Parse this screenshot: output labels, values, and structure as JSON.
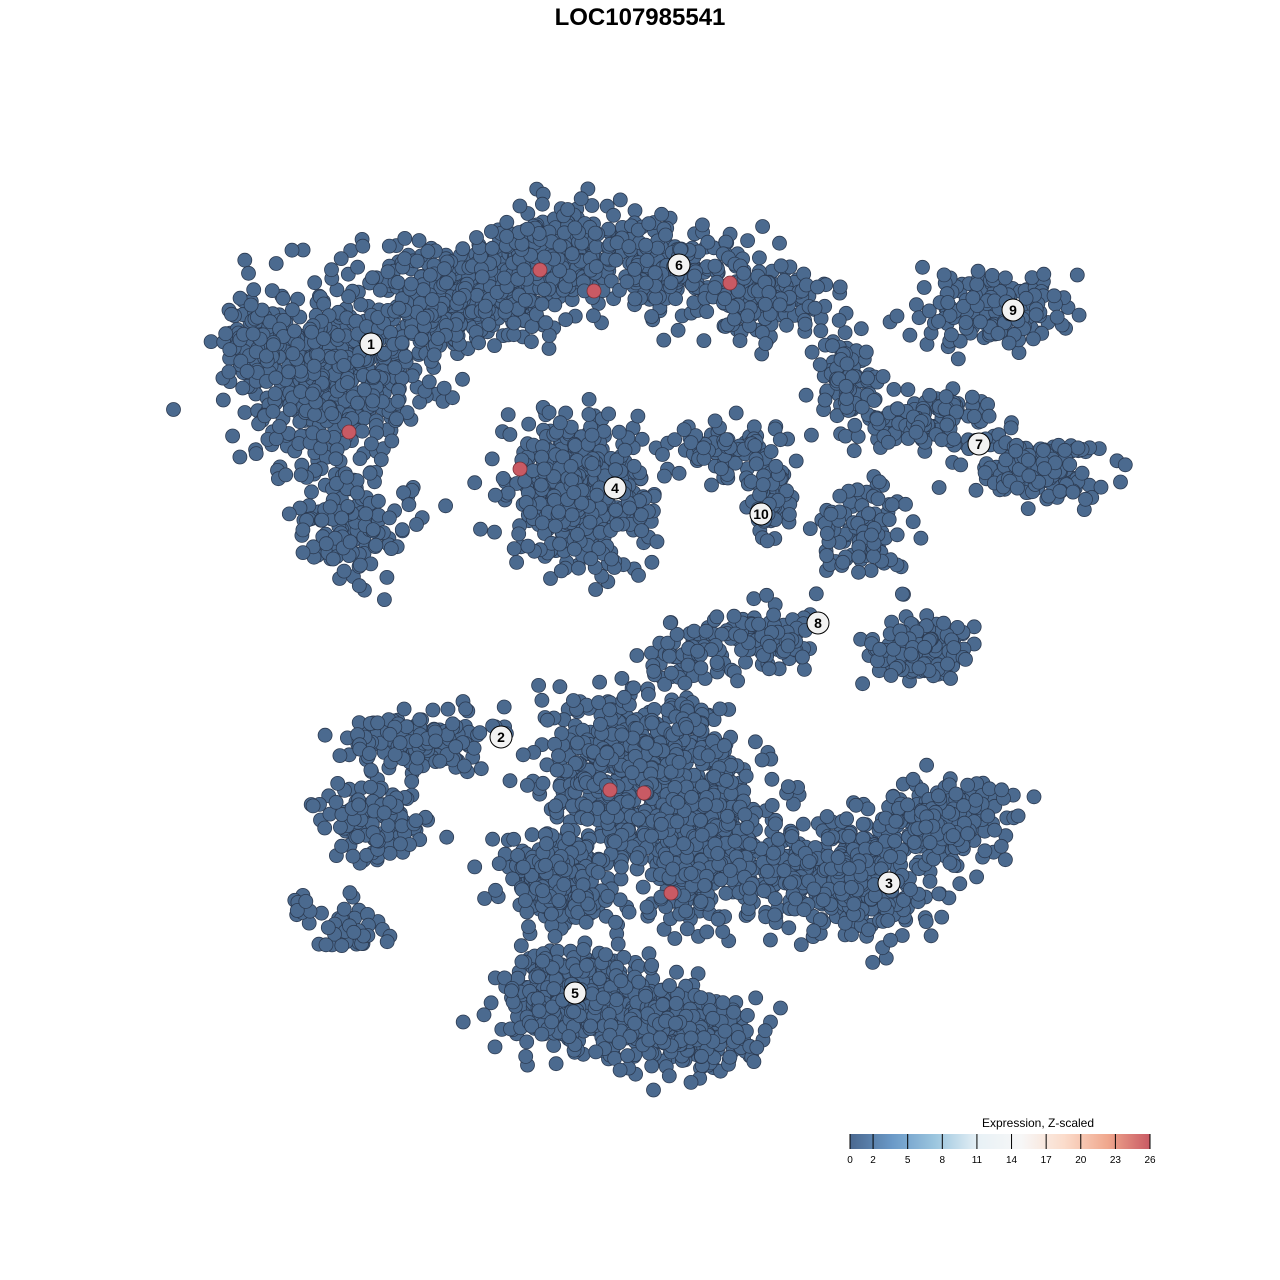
{
  "chart_data": {
    "type": "scatter",
    "title": "LOC107985541",
    "xlabel": "",
    "ylabel": "",
    "axes_visible": false,
    "grid": false,
    "base_point_color": "#4b6a8f",
    "highlight_point_color": "#c95a64",
    "cluster_labels": [
      {
        "label": "1",
        "x": -26.9,
        "y": 29.6
      },
      {
        "label": "2",
        "x": -13.9,
        "y": -9.7
      },
      {
        "label": "3",
        "x": 24.9,
        "y": -24.3
      },
      {
        "label": "4",
        "x": -2.5,
        "y": 15.2
      },
      {
        "label": "5",
        "x": -6.5,
        "y": -35.3
      },
      {
        "label": "6",
        "x": 3.9,
        "y": 37.5
      },
      {
        "label": "7",
        "x": 33.9,
        "y": 19.6
      },
      {
        "label": "8",
        "x": 17.8,
        "y": 1.7
      },
      {
        "label": "9",
        "x": 37.3,
        "y": 33.0
      },
      {
        "label": "10",
        "x": 12.1,
        "y": 12.6
      }
    ],
    "highlighted_points": [
      {
        "x": -10.0,
        "y": 37.0,
        "value": 26
      },
      {
        "x": -4.6,
        "y": 34.9,
        "value": 26
      },
      {
        "x": 9.0,
        "y": 35.7,
        "value": 26
      },
      {
        "x": -29.1,
        "y": 20.8,
        "value": 26
      },
      {
        "x": -12.0,
        "y": 17.1,
        "value": 26
      },
      {
        "x": -3.0,
        "y": -15.0,
        "value": 26
      },
      {
        "x": 0.4,
        "y": -15.3,
        "value": 26
      },
      {
        "x": 3.1,
        "y": -25.3,
        "value": 26
      }
    ],
    "base_value": 0,
    "legend": {
      "title": "Expression, Z-scaled",
      "placement": "bottom-right",
      "ticks": [
        "0",
        "2",
        "5",
        "8",
        "11",
        "14",
        "17",
        "20",
        "23",
        "26"
      ],
      "range": [
        0,
        26
      ],
      "colors": [
        "#4a6890",
        "#6b9ac8",
        "#9cc6df",
        "#e8f1f6",
        "#f7f7f7",
        "#fbdccb",
        "#f0a88e",
        "#c95a64"
      ]
    }
  }
}
